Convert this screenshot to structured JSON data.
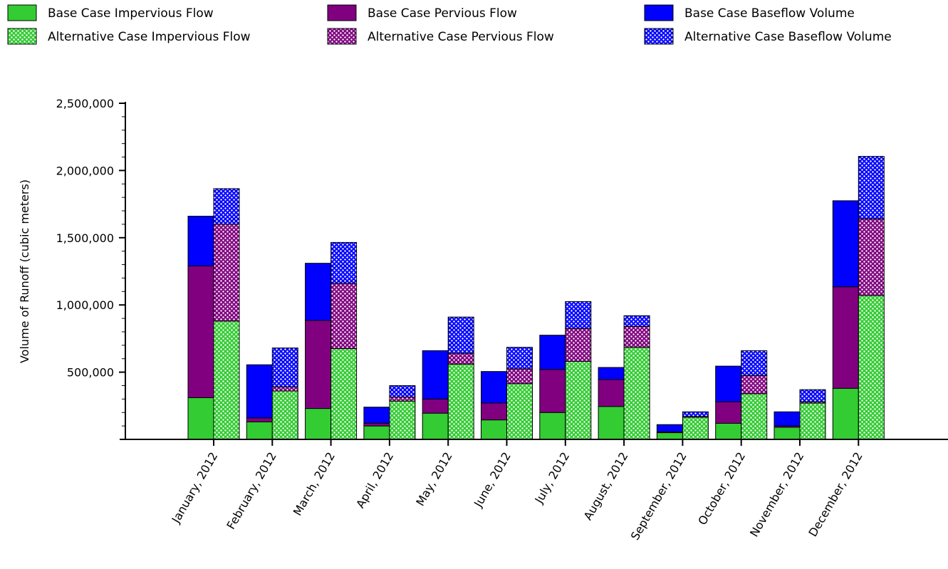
{
  "chart_data": {
    "type": "bar",
    "stacked": true,
    "grouped": true,
    "title": "",
    "xlabel": "",
    "ylabel": "Volume of Runoff (cubic meters)",
    "ylim": [
      0,
      2500000
    ],
    "yticks": [
      500000,
      1000000,
      1500000,
      2000000,
      2500000
    ],
    "ytick_labels": [
      "500,000",
      "1,000,000",
      "1,500,000",
      "2,000,000",
      "2,500,000"
    ],
    "grid": false,
    "legend_position": "top",
    "categories": [
      "January, 2012",
      "February, 2012",
      "March, 2012",
      "April, 2012",
      "May, 2012",
      "June, 2012",
      "July, 2012",
      "August, 2012",
      "September, 2012",
      "October, 2012",
      "November, 2012",
      "December, 2012"
    ],
    "series": [
      {
        "name": "Base Case Impervious Flow",
        "group": "base",
        "color": "#33cc33",
        "pattern": "solid",
        "values": [
          310000,
          130000,
          230000,
          100000,
          195000,
          145000,
          200000,
          245000,
          50000,
          120000,
          90000,
          380000
        ]
      },
      {
        "name": "Base Case Pervious Flow",
        "group": "base",
        "color": "#800080",
        "pattern": "solid",
        "values": [
          980000,
          30000,
          655000,
          20000,
          105000,
          125000,
          320000,
          200000,
          5000,
          160000,
          10000,
          755000
        ]
      },
      {
        "name": "Base Case Baseflow Volume",
        "group": "base",
        "color": "#0000ff",
        "pattern": "solid",
        "values": [
          370000,
          395000,
          425000,
          120000,
          360000,
          235000,
          255000,
          90000,
          55000,
          265000,
          105000,
          640000
        ]
      },
      {
        "name": "Alternative Case Impervious Flow",
        "group": "alternative",
        "color": "#33cc33",
        "pattern": "dotted",
        "values": [
          880000,
          360000,
          675000,
          285000,
          560000,
          415000,
          580000,
          685000,
          165000,
          340000,
          270000,
          1070000
        ]
      },
      {
        "name": "Alternative Case Pervious Flow",
        "group": "alternative",
        "color": "#800080",
        "pattern": "dotted",
        "values": [
          720000,
          30000,
          485000,
          30000,
          80000,
          110000,
          245000,
          155000,
          5000,
          135000,
          10000,
          570000
        ]
      },
      {
        "name": "Alternative Case Baseflow Volume",
        "group": "alternative",
        "color": "#0000ff",
        "pattern": "dotted",
        "values": [
          265000,
          290000,
          305000,
          85000,
          270000,
          160000,
          200000,
          80000,
          35000,
          185000,
          90000,
          465000
        ]
      }
    ]
  }
}
